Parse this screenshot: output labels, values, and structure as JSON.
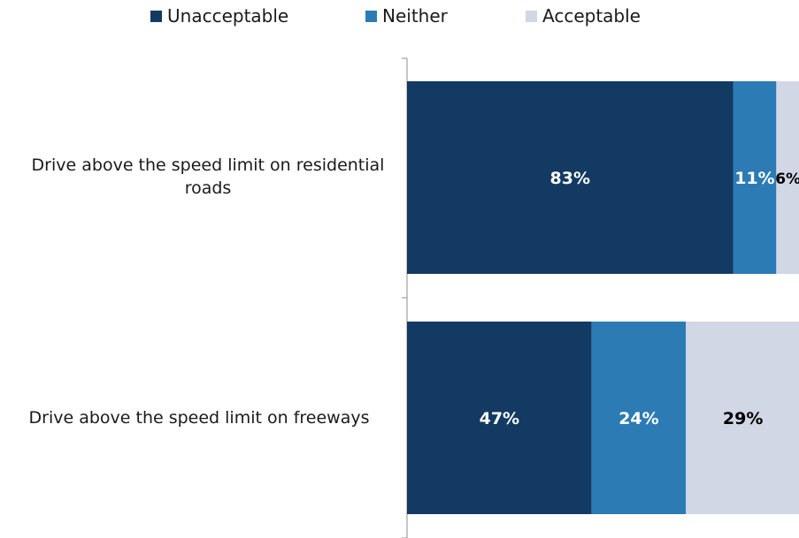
{
  "chart_data": {
    "type": "bar",
    "orientation": "horizontal",
    "stacked": true,
    "categories": [
      "Drive above the speed limit on residential roads",
      "Drive above the speed limit on freeways"
    ],
    "series": [
      {
        "name": "Unacceptable",
        "color": "#133a63",
        "values": [
          83,
          47
        ],
        "labels": [
          "83%",
          "47%"
        ],
        "label_color": "#ffffff"
      },
      {
        "name": "Neither",
        "color": "#2c7bb4",
        "values": [
          11,
          24
        ],
        "labels": [
          "11%",
          "24%"
        ],
        "label_color": "#ffffff"
      },
      {
        "name": "Acceptable",
        "color": "#d2d7e6",
        "values": [
          6,
          29
        ],
        "labels": [
          "6%",
          "29%"
        ],
        "label_color": "#000000"
      }
    ],
    "xlim": [
      0,
      100
    ],
    "legend_position": "top",
    "grid": false
  }
}
